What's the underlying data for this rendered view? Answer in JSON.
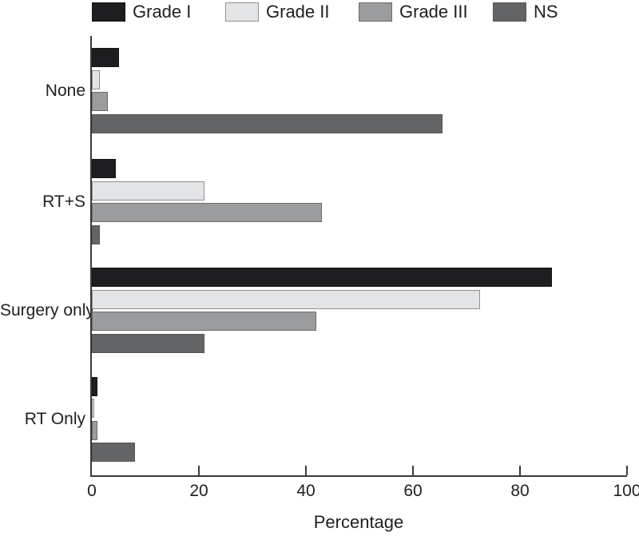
{
  "chart_data": {
    "type": "bar",
    "orientation": "horizontal",
    "xlabel": "Percentage",
    "xlim": [
      0,
      100
    ],
    "xticks": [
      0,
      20,
      40,
      60,
      80,
      100
    ],
    "grid": false,
    "legend_position": "top",
    "categories": [
      "None",
      "RT+S",
      "Surgery only",
      "RT Only"
    ],
    "series": [
      {
        "name": "Grade I",
        "color": "#1e1e20",
        "border": "#141414",
        "values": [
          5,
          4.5,
          86,
          1
        ]
      },
      {
        "name": "Grade II",
        "color": "#e3e4e6",
        "border": "#8f9092",
        "values": [
          1.5,
          21,
          72.5,
          0.5
        ]
      },
      {
        "name": "Grade III",
        "color": "#9b9c9e",
        "border": "#6b6c6e",
        "values": [
          3,
          43,
          42,
          1
        ]
      },
      {
        "name": "NS",
        "color": "#636466",
        "border": "#555658",
        "values": [
          65.5,
          1.5,
          21,
          8
        ]
      }
    ],
    "axis_color": "#3a3a3a"
  }
}
